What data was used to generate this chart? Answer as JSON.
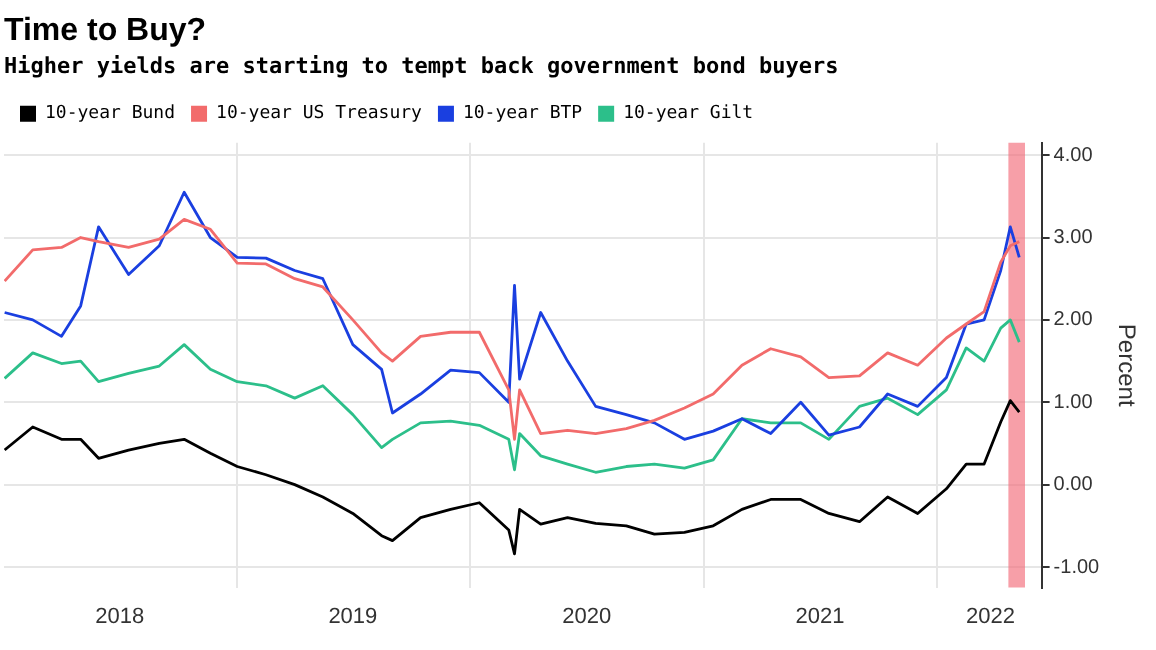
{
  "chart_data": {
    "type": "line",
    "title": "Time to Buy?",
    "subtitle": "Higher yields are starting to tempt back government bond buyers",
    "ylabel": "Percent",
    "x": [
      "2018-01-02",
      "2018-02-15",
      "2018-04-01",
      "2018-05-01",
      "2018-05-29",
      "2018-07-15",
      "2018-09-01",
      "2018-10-10",
      "2018-11-20",
      "2019-01-01",
      "2019-02-15",
      "2019-04-01",
      "2019-05-15",
      "2019-07-01",
      "2019-08-15",
      "2019-09-01",
      "2019-10-15",
      "2019-12-01",
      "2020-01-15",
      "2020-03-01",
      "2020-03-10",
      "2020-03-18",
      "2020-04-20",
      "2020-06-01",
      "2020-07-15",
      "2020-09-01",
      "2020-10-15",
      "2020-12-01",
      "2021-01-15",
      "2021-03-01",
      "2021-04-15",
      "2021-06-01",
      "2021-07-15",
      "2021-09-01",
      "2021-10-15",
      "2021-12-01",
      "2022-01-15",
      "2022-02-15",
      "2022-03-15",
      "2022-04-10",
      "2022-04-25",
      "2022-05-09"
    ],
    "series": [
      {
        "name": "10-year Bund",
        "color": "#000000",
        "values": [
          0.42,
          0.7,
          0.55,
          0.55,
          0.32,
          0.42,
          0.5,
          0.55,
          0.38,
          0.22,
          0.12,
          0.0,
          -0.15,
          -0.35,
          -0.62,
          -0.68,
          -0.4,
          -0.3,
          -0.22,
          -0.55,
          -0.84,
          -0.3,
          -0.48,
          -0.4,
          -0.47,
          -0.5,
          -0.6,
          -0.58,
          -0.5,
          -0.3,
          -0.18,
          -0.18,
          -0.35,
          -0.45,
          -0.15,
          -0.35,
          -0.05,
          0.25,
          0.25,
          0.76,
          1.02,
          0.88
        ]
      },
      {
        "name": "10-year US Treasury",
        "color": "#f26b6b",
        "values": [
          2.47,
          2.85,
          2.88,
          3.0,
          2.95,
          2.88,
          2.98,
          3.22,
          3.1,
          2.69,
          2.68,
          2.5,
          2.4,
          2.0,
          1.6,
          1.5,
          1.8,
          1.85,
          1.85,
          1.15,
          0.55,
          1.15,
          0.62,
          0.66,
          0.62,
          0.68,
          0.78,
          0.93,
          1.1,
          1.45,
          1.65,
          1.55,
          1.3,
          1.32,
          1.6,
          1.45,
          1.78,
          1.95,
          2.1,
          2.7,
          2.9,
          2.95
        ]
      },
      {
        "name": "10-year BTP",
        "color": "#1a3fe0",
        "values": [
          2.09,
          2.0,
          1.8,
          2.17,
          3.13,
          2.55,
          2.9,
          3.55,
          3.0,
          2.76,
          2.75,
          2.6,
          2.5,
          1.7,
          1.4,
          0.87,
          1.1,
          1.39,
          1.36,
          1.0,
          2.42,
          1.28,
          2.09,
          1.5,
          0.95,
          0.85,
          0.75,
          0.55,
          0.65,
          0.8,
          0.62,
          1.0,
          0.6,
          0.7,
          1.1,
          0.95,
          1.3,
          1.95,
          2.0,
          2.6,
          3.13,
          2.76
        ]
      },
      {
        "name": "10-year Gilt",
        "color": "#2cbf8a",
        "values": [
          1.29,
          1.6,
          1.47,
          1.5,
          1.25,
          1.35,
          1.44,
          1.7,
          1.4,
          1.25,
          1.2,
          1.05,
          1.2,
          0.85,
          0.45,
          0.55,
          0.75,
          0.77,
          0.72,
          0.55,
          0.18,
          0.62,
          0.35,
          0.25,
          0.15,
          0.22,
          0.25,
          0.2,
          0.3,
          0.8,
          0.75,
          0.75,
          0.55,
          0.95,
          1.05,
          0.85,
          1.15,
          1.66,
          1.5,
          1.9,
          2.0,
          1.73
        ]
      }
    ],
    "xlim": [
      "2018-01-01",
      "2022-06-13"
    ],
    "xticks": [
      {
        "value": "2018-07-01",
        "label": "2018"
      },
      {
        "value": "2019-01-01",
        "label": null
      },
      {
        "value": "2019-07-01",
        "label": "2019"
      },
      {
        "value": "2020-01-01",
        "label": null
      },
      {
        "value": "2020-07-01",
        "label": "2020"
      },
      {
        "value": "2021-01-01",
        "label": null
      },
      {
        "value": "2021-07-01",
        "label": "2021"
      },
      {
        "value": "2022-01-01",
        "label": null
      },
      {
        "value": "2022-03-25",
        "label": "2022"
      }
    ],
    "ylim": [
      -1.25,
      4.15
    ],
    "yticks": [
      {
        "value": -1,
        "label": "-1.00"
      },
      {
        "value": 0,
        "label": "0.00"
      },
      {
        "value": 1,
        "label": "1.00"
      },
      {
        "value": 2,
        "label": "2.00"
      },
      {
        "value": 3,
        "label": "3.00"
      },
      {
        "value": 4,
        "label": "4.00"
      }
    ],
    "bands": [
      {
        "axis": "x",
        "from": "2022-04-22",
        "to": "2022-05-18",
        "color": "#f26b7a"
      }
    ],
    "grid": true,
    "legend": "top left",
    "line_style": "solid",
    "marker": "none"
  }
}
